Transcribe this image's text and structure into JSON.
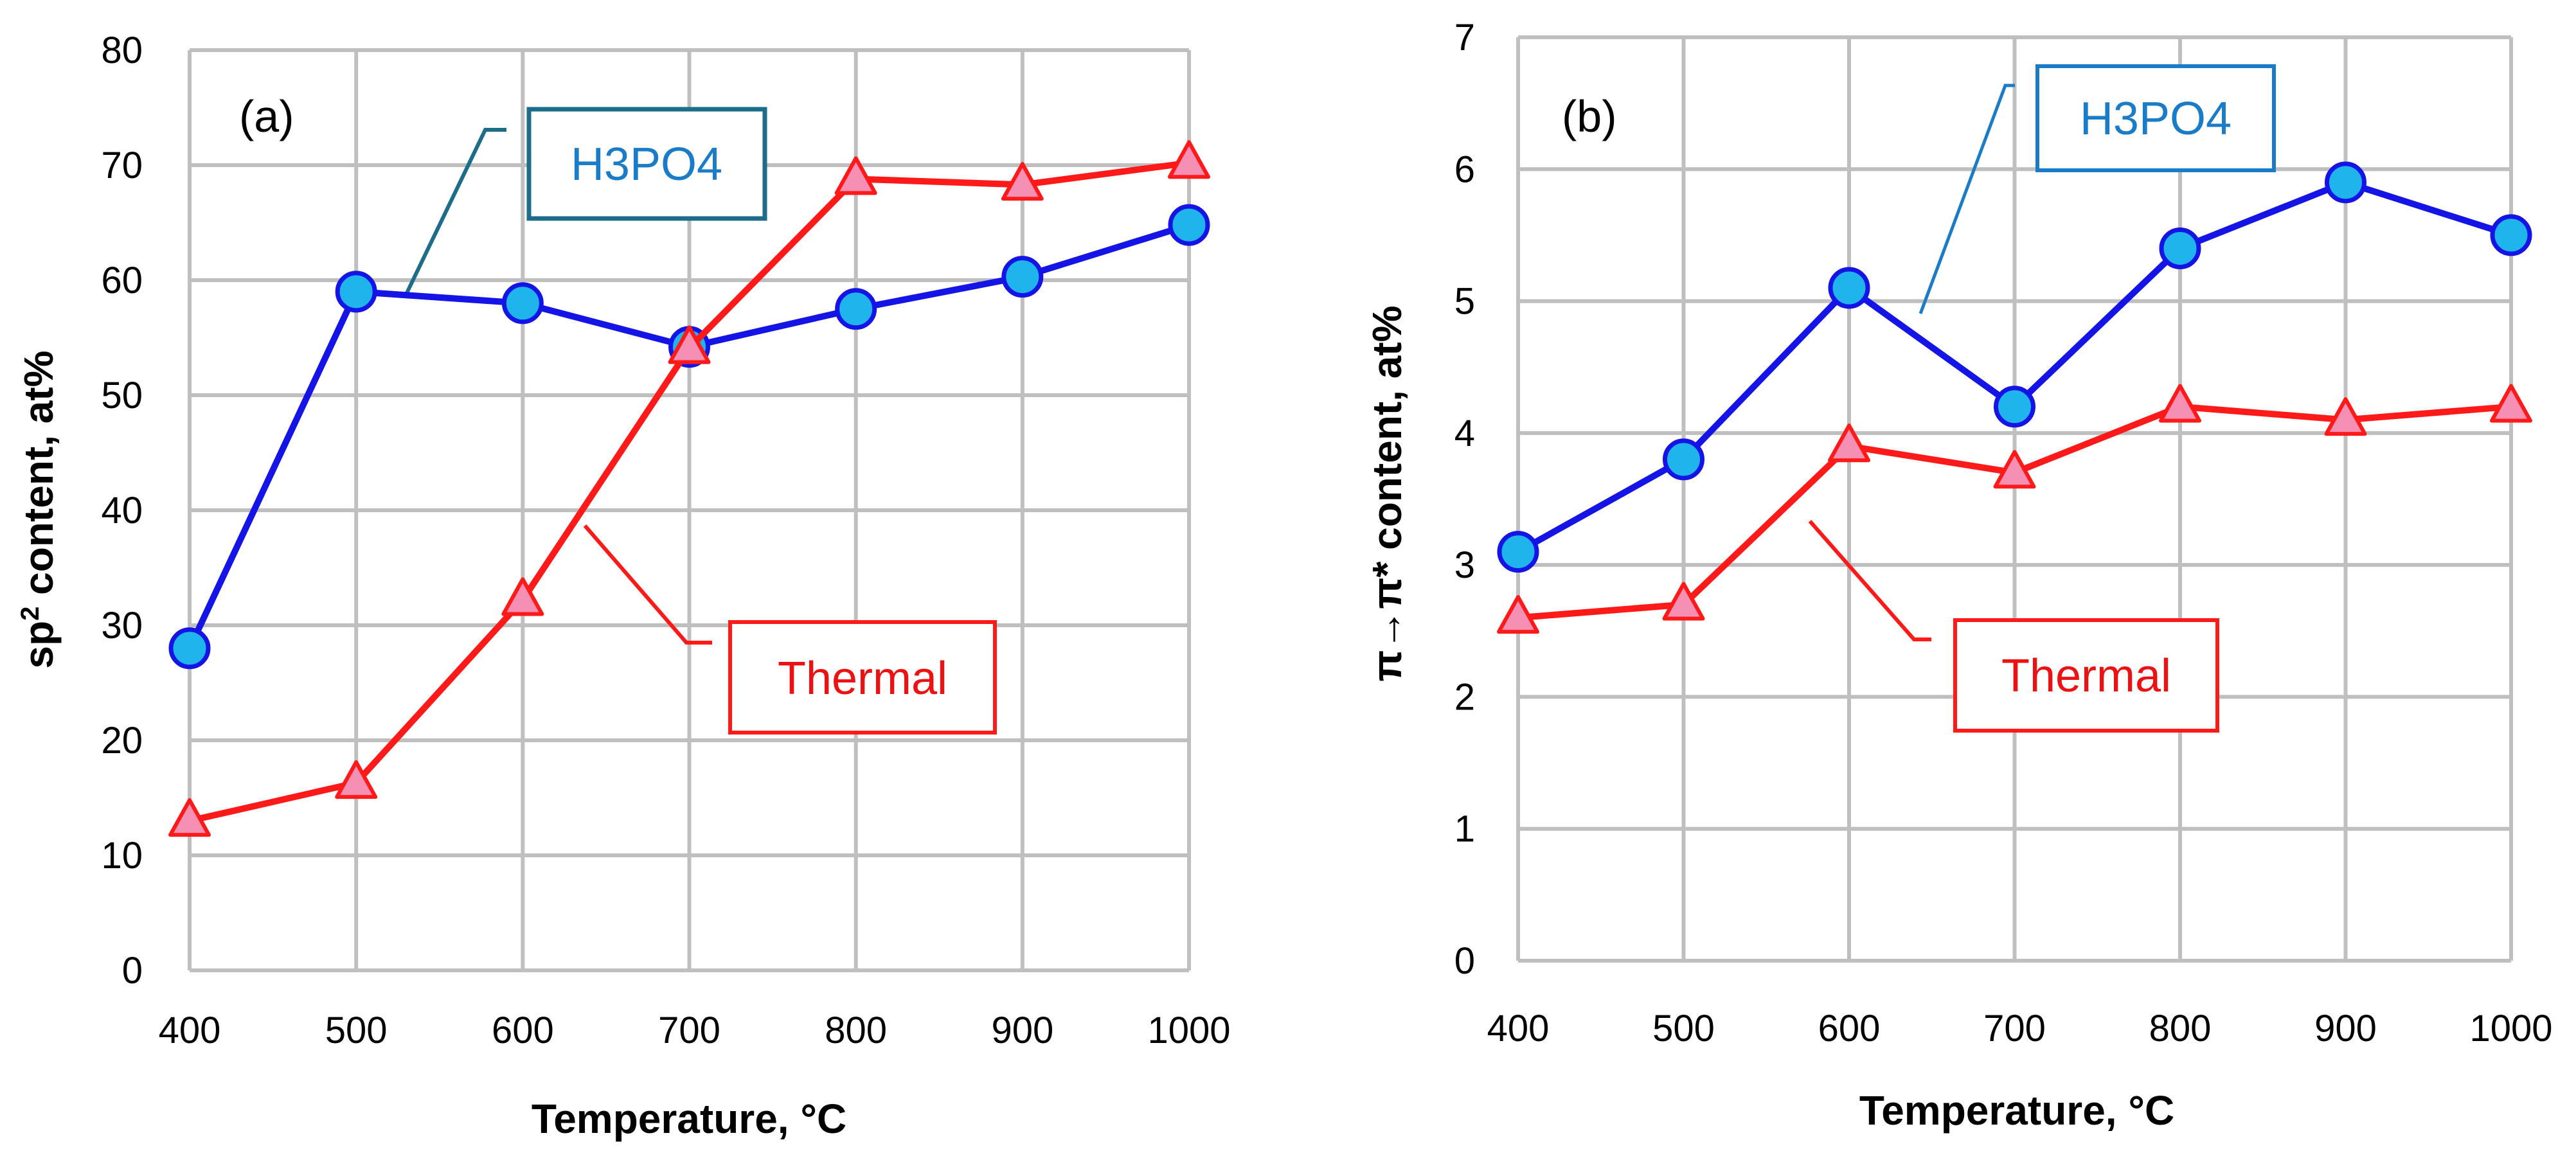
{
  "colors": {
    "h3po4_line": "#1414e6",
    "h3po4_marker": "#1fb4ec",
    "thermal_line": "#ff1a1a",
    "thermal_marker": "#f590b4",
    "grid": "#bfbfbf",
    "h3po4_box": "#1b6d8a",
    "h3po4_text": "#1a7cc8",
    "thermal_text": "#ee1111"
  },
  "chart_data": [
    {
      "type": "line",
      "panel_label": "(a)",
      "title": "",
      "xlabel": "Temperature, °C",
      "ylabel_main": "sp",
      "ylabel_sup": "2",
      "ylabel_rest": " content, at%",
      "x": [
        400,
        500,
        600,
        700,
        800,
        900,
        1000
      ],
      "xlim": [
        400,
        1000
      ],
      "ylim": [
        0,
        80
      ],
      "x_ticks": [
        400,
        500,
        600,
        700,
        800,
        900,
        1000
      ],
      "y_ticks": [
        0,
        10,
        20,
        30,
        40,
        50,
        60,
        70,
        80
      ],
      "grid": true,
      "series": [
        {
          "name": "H3PO4",
          "marker": "circle",
          "values": [
            28,
            59,
            58,
            54.2,
            57.5,
            60.3,
            64.8
          ]
        },
        {
          "name": "Thermal",
          "marker": "triangle",
          "values": [
            13,
            16.3,
            32.2,
            54.1,
            68.8,
            68.3,
            70.2
          ]
        }
      ],
      "annotations": {
        "h3po4_label": "H3PO4",
        "thermal_label": "Thermal"
      }
    },
    {
      "type": "line",
      "panel_label": "(b)",
      "title": "",
      "xlabel": "Temperature, °C",
      "ylabel": "π→π* content, at%",
      "x": [
        400,
        500,
        600,
        700,
        800,
        900,
        1000
      ],
      "xlim": [
        400,
        1000
      ],
      "ylim": [
        0,
        7
      ],
      "x_ticks": [
        400,
        500,
        600,
        700,
        800,
        900,
        1000
      ],
      "y_ticks": [
        0,
        1,
        2,
        3,
        4,
        5,
        6,
        7
      ],
      "grid": true,
      "series": [
        {
          "name": "H3PO4",
          "marker": "circle",
          "values": [
            3.1,
            3.8,
            5.1,
            4.2,
            5.4,
            5.9,
            5.5
          ]
        },
        {
          "name": "Thermal",
          "marker": "triangle",
          "values": [
            2.6,
            2.7,
            3.9,
            3.7,
            4.2,
            4.1,
            4.2
          ]
        }
      ],
      "annotations": {
        "h3po4_label": "H3PO4",
        "thermal_label": "Thermal"
      }
    }
  ]
}
